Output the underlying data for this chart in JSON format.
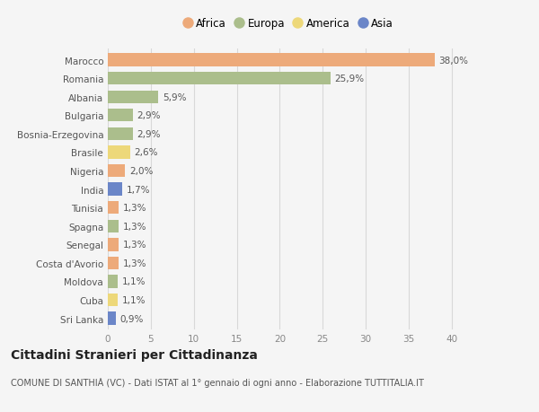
{
  "countries": [
    "Marocco",
    "Romania",
    "Albania",
    "Bulgaria",
    "Bosnia-Erzegovina",
    "Brasile",
    "Nigeria",
    "India",
    "Tunisia",
    "Spagna",
    "Senegal",
    "Costa d'Avorio",
    "Moldova",
    "Cuba",
    "Sri Lanka"
  ],
  "values": [
    38.0,
    25.9,
    5.9,
    2.9,
    2.9,
    2.6,
    2.0,
    1.7,
    1.3,
    1.3,
    1.3,
    1.3,
    1.1,
    1.1,
    0.9
  ],
  "labels": [
    "38,0%",
    "25,9%",
    "5,9%",
    "2,9%",
    "2,9%",
    "2,6%",
    "2,0%",
    "1,7%",
    "1,3%",
    "1,3%",
    "1,3%",
    "1,3%",
    "1,1%",
    "1,1%",
    "0,9%"
  ],
  "continents": [
    "Africa",
    "Europa",
    "Europa",
    "Europa",
    "Europa",
    "America",
    "Africa",
    "Asia",
    "Africa",
    "Europa",
    "Africa",
    "Africa",
    "Europa",
    "America",
    "Asia"
  ],
  "continent_colors": {
    "Africa": "#EDAA7A",
    "Europa": "#ABBE8C",
    "America": "#EDD87A",
    "Asia": "#6B86C8"
  },
  "legend_order": [
    "Africa",
    "Europa",
    "America",
    "Asia"
  ],
  "title": "Cittadini Stranieri per Cittadinanza",
  "subtitle": "COMUNE DI SANTHIÀ (VC) - Dati ISTAT al 1° gennaio di ogni anno - Elaborazione TUTTITALIA.IT",
  "xlim": [
    0,
    42
  ],
  "xticks": [
    0,
    5,
    10,
    15,
    20,
    25,
    30,
    35,
    40
  ],
  "bg_color": "#f5f5f5",
  "grid_color": "#d8d8d8",
  "bar_height": 0.7,
  "label_fontsize": 7.5,
  "tick_label_fontsize": 7.5,
  "title_fontsize": 10,
  "subtitle_fontsize": 7,
  "legend_fontsize": 8.5
}
